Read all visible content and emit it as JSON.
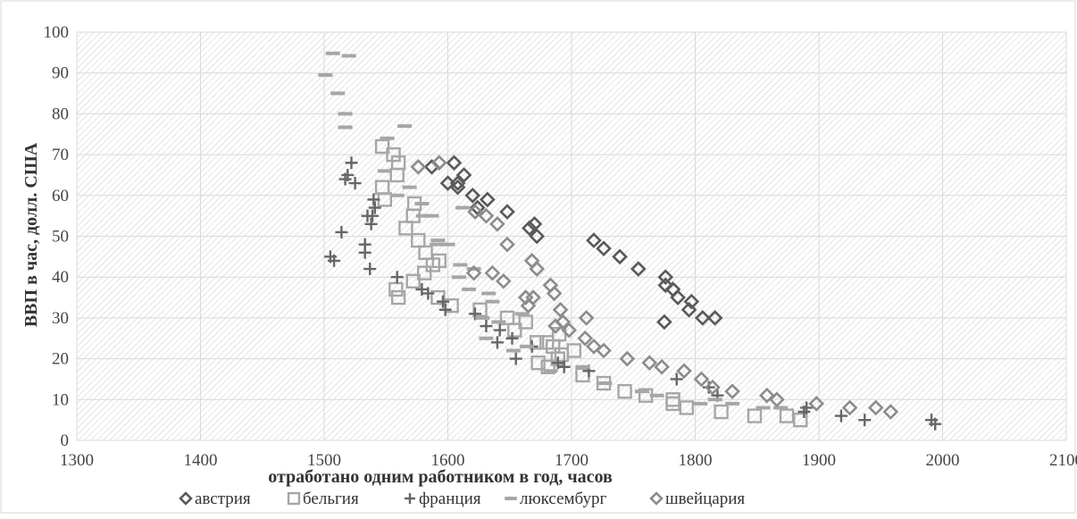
{
  "chart_data": {
    "type": "scatter",
    "title": "",
    "xlabel": "отработано одним работником в год, часов",
    "ylabel": "ВВП в час, долл. США",
    "xlim": [
      1300,
      2100
    ],
    "ylim": [
      0,
      100
    ],
    "x_ticks": [
      "1300",
      "1400",
      "1500",
      "1600",
      "1700",
      "1800",
      "1900",
      "2000",
      "2100"
    ],
    "y_ticks": [
      "0",
      "10",
      "20",
      "30",
      "40",
      "50",
      "60",
      "70",
      "80",
      "90",
      "100"
    ],
    "grid": true,
    "legend_position": "bottom",
    "series": [
      {
        "name": "австрия",
        "marker": "diamond-open",
        "color": "#595959",
        "points": [
          [
            1587,
            67
          ],
          [
            1605,
            68
          ],
          [
            1608,
            63
          ],
          [
            1613,
            65
          ],
          [
            1600,
            63
          ],
          [
            1608,
            62
          ],
          [
            1620,
            60
          ],
          [
            1624,
            57
          ],
          [
            1632,
            59
          ],
          [
            1648,
            56
          ],
          [
            1670,
            53
          ],
          [
            1666,
            52
          ],
          [
            1672,
            50
          ],
          [
            1718,
            49
          ],
          [
            1726,
            47
          ],
          [
            1739,
            45
          ],
          [
            1754,
            42
          ],
          [
            1776,
            40
          ],
          [
            1782,
            37
          ],
          [
            1776,
            38
          ],
          [
            1786,
            35
          ],
          [
            1797,
            34
          ],
          [
            1795,
            32
          ],
          [
            1806,
            30
          ],
          [
            1816,
            30
          ],
          [
            1775,
            29
          ]
        ]
      },
      {
        "name": "бельгия",
        "marker": "square-open",
        "color": "#a6a6a6",
        "points": [
          [
            1547,
            72
          ],
          [
            1556,
            70
          ],
          [
            1560,
            68
          ],
          [
            1559,
            65
          ],
          [
            1547,
            62
          ],
          [
            1549,
            59
          ],
          [
            1573,
            58
          ],
          [
            1566,
            52
          ],
          [
            1572,
            55
          ],
          [
            1576,
            49
          ],
          [
            1582,
            46
          ],
          [
            1588,
            43
          ],
          [
            1593,
            44
          ],
          [
            1581,
            41
          ],
          [
            1572,
            39
          ],
          [
            1558,
            37
          ],
          [
            1560,
            35
          ],
          [
            1592,
            35
          ],
          [
            1603,
            33
          ],
          [
            1626,
            32
          ],
          [
            1648,
            30
          ],
          [
            1663,
            29
          ],
          [
            1654,
            27
          ],
          [
            1690,
            26
          ],
          [
            1680,
            24
          ],
          [
            1672,
            24
          ],
          [
            1685,
            23
          ],
          [
            1702,
            22
          ],
          [
            1689,
            20
          ],
          [
            1692,
            21
          ],
          [
            1673,
            19
          ],
          [
            1681,
            18
          ],
          [
            1709,
            16
          ],
          [
            1726,
            14
          ],
          [
            1743,
            12
          ],
          [
            1760,
            11
          ],
          [
            1782,
            10
          ],
          [
            1782,
            9
          ],
          [
            1793,
            8
          ],
          [
            1821,
            7
          ],
          [
            1848,
            6
          ],
          [
            1874,
            6
          ],
          [
            1885,
            5
          ]
        ]
      },
      {
        "name": "франция",
        "marker": "plus",
        "color": "#666666",
        "points": [
          [
            1522,
            68
          ],
          [
            1519,
            65
          ],
          [
            1517,
            64
          ],
          [
            1525,
            63
          ],
          [
            1540,
            59
          ],
          [
            1535,
            55
          ],
          [
            1539,
            55
          ],
          [
            1541,
            57
          ],
          [
            1538,
            53
          ],
          [
            1533,
            48
          ],
          [
            1514,
            51
          ],
          [
            1533,
            46
          ],
          [
            1537,
            42
          ],
          [
            1505,
            45
          ],
          [
            1508,
            44
          ],
          [
            1559,
            40
          ],
          [
            1579,
            37
          ],
          [
            1584,
            36
          ],
          [
            1596,
            34
          ],
          [
            1598,
            32
          ],
          [
            1622,
            31
          ],
          [
            1631,
            28
          ],
          [
            1642,
            27
          ],
          [
            1640,
            24
          ],
          [
            1652,
            25
          ],
          [
            1655,
            20
          ],
          [
            1668,
            23
          ],
          [
            1689,
            19
          ],
          [
            1694,
            18
          ],
          [
            1714,
            17
          ],
          [
            1785,
            15
          ],
          [
            1811,
            13
          ],
          [
            1818,
            11
          ],
          [
            1890,
            8
          ],
          [
            1888,
            7
          ],
          [
            1918,
            6
          ],
          [
            1937,
            5
          ],
          [
            1991,
            5
          ],
          [
            1994,
            4
          ]
        ]
      },
      {
        "name": "люксембург",
        "marker": "dash",
        "color": "#a6a6a6",
        "points": [
          [
            1507,
            94.8
          ],
          [
            1520,
            94.2
          ],
          [
            1501,
            89.5
          ],
          [
            1511,
            85
          ],
          [
            1517,
            80
          ],
          [
            1517,
            76.7
          ],
          [
            1565,
            77
          ],
          [
            1551,
            74
          ],
          [
            1549,
            66
          ],
          [
            1559,
            60
          ],
          [
            1569,
            62
          ],
          [
            1579,
            58
          ],
          [
            1580,
            55
          ],
          [
            1587,
            55
          ],
          [
            1592,
            49
          ],
          [
            1591,
            48
          ],
          [
            1600,
            48
          ],
          [
            1610,
            43
          ],
          [
            1612,
            57
          ],
          [
            1621,
            42
          ],
          [
            1609,
            40
          ],
          [
            1617,
            37
          ],
          [
            1633,
            36
          ],
          [
            1636,
            34
          ],
          [
            1628,
            30
          ],
          [
            1641,
            29
          ],
          [
            1660,
            31
          ],
          [
            1631,
            25
          ],
          [
            1653,
            22
          ],
          [
            1664,
            23
          ],
          [
            1683,
            17
          ],
          [
            1709,
            18
          ],
          [
            1727,
            14
          ],
          [
            1757,
            12
          ],
          [
            1769,
            11
          ],
          [
            1804,
            9
          ],
          [
            1816,
            10
          ],
          [
            1830,
            9
          ],
          [
            1869,
            8
          ],
          [
            1855,
            8
          ]
        ]
      },
      {
        "name": "швейцария",
        "marker": "diamond-open",
        "color": "#8c8c8c",
        "points": [
          [
            1576,
            67
          ],
          [
            1593,
            68
          ],
          [
            1622,
            56
          ],
          [
            1631,
            55
          ],
          [
            1640,
            53
          ],
          [
            1648,
            48
          ],
          [
            1668,
            44
          ],
          [
            1672,
            42
          ],
          [
            1621,
            41
          ],
          [
            1636,
            41
          ],
          [
            1645,
            39
          ],
          [
            1683,
            38
          ],
          [
            1686,
            36
          ],
          [
            1669,
            35
          ],
          [
            1663,
            35
          ],
          [
            1665,
            33
          ],
          [
            1691,
            32
          ],
          [
            1693,
            29
          ],
          [
            1687,
            28
          ],
          [
            1698,
            27
          ],
          [
            1712,
            30
          ],
          [
            1711,
            25
          ],
          [
            1718,
            23
          ],
          [
            1726,
            22
          ],
          [
            1745,
            20
          ],
          [
            1763,
            19
          ],
          [
            1773,
            18
          ],
          [
            1791,
            17
          ],
          [
            1805,
            15
          ],
          [
            1814,
            13
          ],
          [
            1830,
            12
          ],
          [
            1858,
            11
          ],
          [
            1866,
            10
          ],
          [
            1898,
            9
          ],
          [
            1925,
            8
          ],
          [
            1946,
            8
          ],
          [
            1958,
            7
          ]
        ]
      }
    ]
  }
}
